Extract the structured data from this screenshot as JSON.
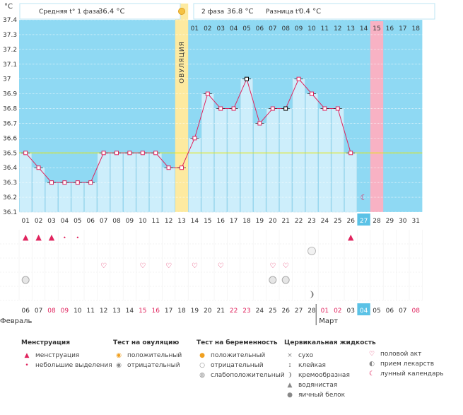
{
  "header": {
    "unit": "°C",
    "phase1_label": "Средняя t° 1 фаза",
    "phase1_value": "36.4 °C",
    "phase2_label": "2 фаза",
    "phase2_value": "36.8 °C",
    "diff_label": "Разница t°",
    "diff_value": "0.4 °C"
  },
  "ovulation_label": "ОВУЛЯЦИЯ",
  "month_labels": {
    "feb": "Февраль",
    "mar": "Март"
  },
  "colors": {
    "sky": "#8fd9f3",
    "bar": "#cdeefb",
    "bar_border": "#9fd4ea",
    "ovulation": "#fdeaa0",
    "future": "#f8b2c4",
    "line": "#e0245e",
    "today": "#5bc2e6",
    "coverline": "#e6e600"
  },
  "chart_data": {
    "type": "line",
    "ylim": [
      36.1,
      37.4
    ],
    "yticks": [
      "36.1",
      "36.2",
      "36.3",
      "36.4",
      "36.5",
      "36.6",
      "36.7",
      "36.8",
      "36.9",
      "37",
      "37.1",
      "37.2",
      "37.3",
      "37.4"
    ],
    "cycle_days": [
      "01",
      "02",
      "03",
      "04",
      "05",
      "06",
      "07",
      "08",
      "09",
      "10",
      "11",
      "12",
      "13",
      "14",
      "15",
      "16",
      "17",
      "18",
      "19",
      "20",
      "21",
      "22",
      "23",
      "24",
      "25",
      "26",
      "27",
      "28",
      "29",
      "30",
      "31"
    ],
    "phase2_days": [
      "01",
      "02",
      "03",
      "04",
      "05",
      "06",
      "07",
      "08",
      "09",
      "10",
      "11",
      "12",
      "13",
      "14",
      "15",
      "16",
      "17",
      "18"
    ],
    "temperatures": [
      36.5,
      36.4,
      36.3,
      36.3,
      36.3,
      36.3,
      36.5,
      36.5,
      36.5,
      36.5,
      36.5,
      36.4,
      36.4,
      36.6,
      36.9,
      36.8,
      36.8,
      37.0,
      36.7,
      36.8,
      36.8,
      37.0,
      36.9,
      36.8,
      36.8,
      36.5
    ],
    "marked_days": [
      18,
      21
    ],
    "ovulation_day": 13,
    "today_day": 27,
    "future_day": 28,
    "coverline": 36.5,
    "calendar_dates": [
      "06",
      "07",
      "08",
      "09",
      "10",
      "11",
      "12",
      "13",
      "14",
      "15",
      "16",
      "17",
      "18",
      "19",
      "20",
      "21",
      "22",
      "23",
      "24",
      "25",
      "26",
      "27",
      "28",
      "01",
      "02",
      "03",
      "04",
      "05",
      "06",
      "07",
      "08"
    ],
    "weekend_days": [
      3,
      4,
      10,
      11,
      17,
      18,
      24,
      25,
      31
    ]
  },
  "marker_rows": {
    "menstruation": [
      1,
      2,
      3,
      4,
      5,
      26
    ],
    "pregnancy_negative": [
      7,
      10,
      12,
      14,
      16,
      20
    ],
    "medication": [
      1,
      20,
      21
    ],
    "ovulation_positive_days": [],
    "cervical_eggwhite": [
      23
    ],
    "moon_sky": [
      27
    ]
  },
  "legend": {
    "menstruation": {
      "title": "Менструация",
      "items": [
        "менструация",
        "небольшие выделения"
      ]
    },
    "ovulation_test": {
      "title": "Тест на овуляцию",
      "items": [
        "положительный",
        "отрицательный"
      ]
    },
    "pregnancy_test": {
      "title": "Тест на беременность",
      "items": [
        "положительный",
        "отрицательный",
        "слабоположительный"
      ]
    },
    "cervical": {
      "title": "Цервикальная жидкость",
      "items": [
        "сухо",
        "клейкая",
        "кремообразная",
        "водянистая",
        "яичный белок"
      ]
    },
    "other": {
      "items": [
        "половой акт",
        "прием лекарств",
        "лунный календарь"
      ]
    }
  }
}
